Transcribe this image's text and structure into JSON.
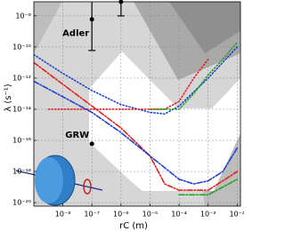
{
  "chart_data": {
    "type": "line",
    "xscale": "log",
    "yscale": "log",
    "x_label": "rC (m)",
    "y_label": "λ (s⁻¹)",
    "xlim": [
      1e-09,
      0.013
    ],
    "ylim": [
      6e-21,
      8e-08
    ],
    "xticks": [
      {
        "value": 1e-08,
        "label": "10⁻⁸"
      },
      {
        "value": 1e-07,
        "label": "10⁻⁷"
      },
      {
        "value": 1e-06,
        "label": "10⁻⁶"
      },
      {
        "value": 1e-05,
        "label": "10⁻⁵"
      },
      {
        "value": 0.0001,
        "label": "10⁻⁴"
      },
      {
        "value": 0.001,
        "label": "10⁻³"
      },
      {
        "value": 0.01,
        "label": "10⁻²"
      }
    ],
    "yticks": [
      {
        "value": 1e-08,
        "label": "10⁻⁸"
      },
      {
        "value": 1e-10,
        "label": "10⁻¹⁰"
      },
      {
        "value": 1e-12,
        "label": "10⁻¹²"
      },
      {
        "value": 1e-14,
        "label": "10⁻¹⁴"
      },
      {
        "value": 1e-16,
        "label": "10⁻¹⁶"
      },
      {
        "value": 1e-18,
        "label": "10⁻¹⁸"
      },
      {
        "value": 1e-20,
        "label": "10⁻²⁰"
      }
    ],
    "grid": true,
    "series": [
      {
        "color": "#1f3fd0",
        "style": "dotted",
        "x": [
          1e-09,
          1e-08,
          1e-07,
          1e-06,
          1e-05,
          3.2e-05,
          0.0001,
          0.001,
          0.01
        ],
        "values": [
          3.2e-11,
          2e-12,
          1.6e-13,
          2e-14,
          6.3e-15,
          5e-15,
          1.6e-14,
          1e-12,
          1e-10
        ]
      },
      {
        "color": "#e02020",
        "style": "dotted",
        "x": [
          3.2e-09,
          3.2e-05,
          0.0001,
          0.00032,
          0.001
        ],
        "values": [
          1e-14,
          1e-14,
          3.2e-14,
          1e-12,
          1.6e-11
        ]
      },
      {
        "color": "#20a020",
        "style": "dotted",
        "x": [
          1e-05,
          0.0001,
          0.00032,
          0.001,
          0.0032,
          0.01
        ],
        "values": [
          1e-14,
          1e-14,
          1e-13,
          1.6e-12,
          1.6e-11,
          2e-10
        ]
      },
      {
        "color": "#e02020",
        "style": "dashdot",
        "x": [
          1e-09,
          1e-08,
          1e-07,
          1e-06,
          1e-05,
          3.2e-05,
          0.0001,
          0.001,
          0.0032,
          0.01
        ],
        "values": [
          1e-11,
          4e-13,
          1.6e-14,
          6.3e-16,
          1e-17,
          1.6e-19,
          6.3e-20,
          6.3e-20,
          2.5e-19,
          1e-18
        ]
      },
      {
        "color": "#1f3fd0",
        "style": "dashdot",
        "x": [
          1e-09,
          1e-08,
          1e-07,
          1e-06,
          1e-05,
          0.0001,
          0.00032,
          0.001,
          0.0032,
          0.01
        ],
        "values": [
          6.3e-13,
          6.3e-14,
          6.3e-15,
          3.2e-16,
          1e-17,
          3.2e-19,
          1.6e-19,
          2.5e-19,
          1e-18,
          3.2e-17
        ]
      },
      {
        "color": "#20a020",
        "style": "dashdot",
        "x": [
          0.0001,
          0.001,
          0.0032,
          0.01
        ],
        "values": [
          3.2e-20,
          3.2e-20,
          1e-19,
          3.2e-19
        ]
      }
    ],
    "points": [
      {
        "label": "Adler",
        "x": 1e-07,
        "y": 6e-09,
        "y_low": 6e-11,
        "y_high": 8e-08
      },
      {
        "x": 1e-06,
        "y": 8e-08,
        "y_low": 1e-08,
        "y_high": 8e-08
      },
      {
        "label": "GRW",
        "x": 1e-07,
        "y": 6e-17
      }
    ]
  }
}
